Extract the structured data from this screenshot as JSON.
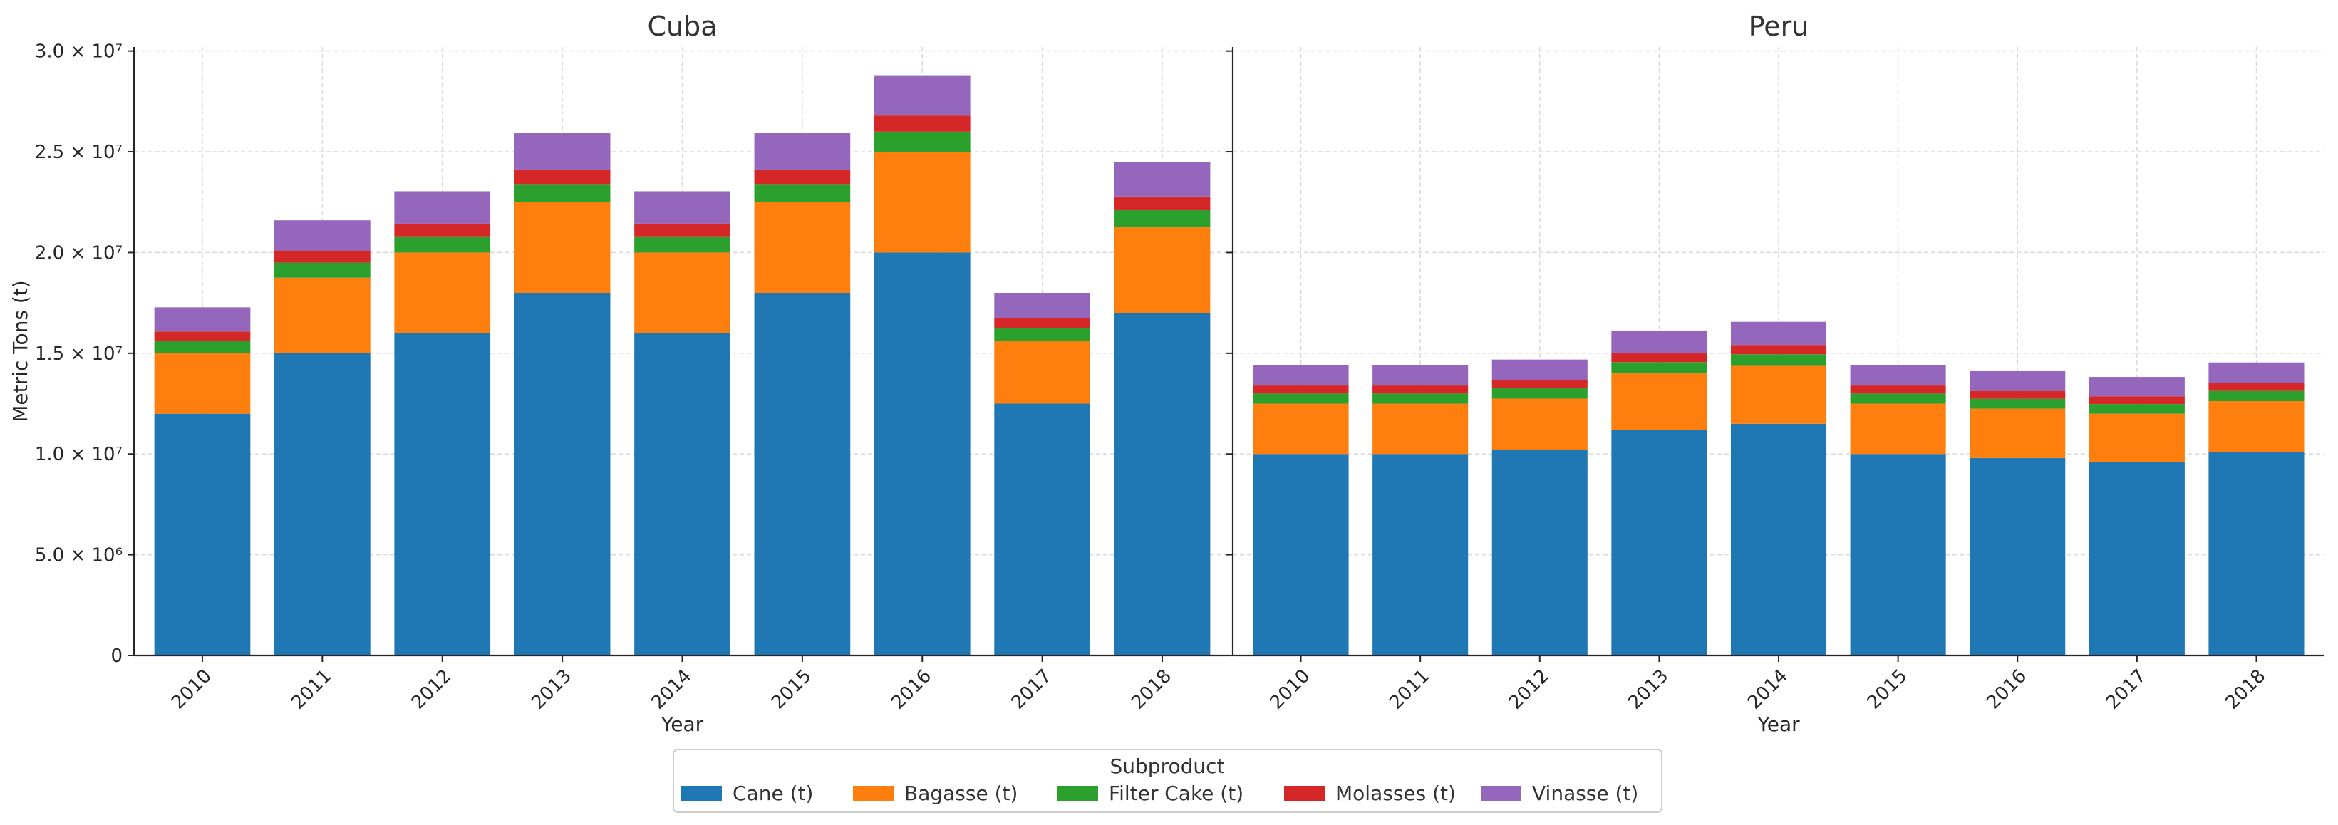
{
  "chart_data": {
    "type": "bar",
    "stacked": true,
    "x_axis_label": "Year",
    "y_axis_label": "Metric Tons (t)",
    "y_ticks": [
      {
        "value": 0,
        "label": "0"
      },
      {
        "value": 5000000,
        "label": "5.0 × 10⁶"
      },
      {
        "value": 10000000,
        "label": "1.0 × 10⁷"
      },
      {
        "value": 15000000,
        "label": "1.5 × 10⁷"
      },
      {
        "value": 20000000,
        "label": "2.0 × 10⁷"
      },
      {
        "value": 25000000,
        "label": "2.5 × 10⁷"
      },
      {
        "value": 30000000,
        "label": "3.0 × 10⁷"
      }
    ],
    "ylim": [
      0,
      30200000
    ],
    "legend": {
      "title": "Subproduct",
      "placement": "bottom-center",
      "entries": [
        "Cane (t)",
        "Bagasse (t)",
        "Filter Cake (t)",
        "Molasses (t)",
        "Vinasse (t)"
      ]
    },
    "series_colors": {
      "Cane (t)": "#1f77b4",
      "Bagasse (t)": "#ff7f0e",
      "Filter Cake (t)": "#2ca02c",
      "Molasses (t)": "#d62728",
      "Vinasse (t)": "#9467bd"
    },
    "panels": [
      {
        "title": "Cuba",
        "categories": [
          "2010",
          "2011",
          "2012",
          "2013",
          "2014",
          "2015",
          "2016",
          "2017",
          "2018"
        ],
        "series": [
          {
            "name": "Cane (t)",
            "values": [
              12000000,
              15000000,
              16000000,
              18000000,
              16000000,
              18000000,
              20000000,
              12500000,
              17000000
            ]
          },
          {
            "name": "Bagasse (t)",
            "values": [
              3000000,
              3750000,
              4000000,
              4500000,
              4000000,
              4500000,
              5000000,
              3125000,
              4250000
            ]
          },
          {
            "name": "Filter Cake (t)",
            "values": [
              600000,
              750000,
              800000,
              900000,
              800000,
              900000,
              1000000,
              625000,
              850000
            ]
          },
          {
            "name": "Molasses (t)",
            "values": [
              480000,
              600000,
              640000,
              720000,
              640000,
              720000,
              800000,
              500000,
              680000
            ]
          },
          {
            "name": "Vinasse (t)",
            "values": [
              1200000,
              1500000,
              1600000,
              1800000,
              1600000,
              1800000,
              2000000,
              1250000,
              1700000
            ]
          }
        ]
      },
      {
        "title": "Peru",
        "categories": [
          "2010",
          "2011",
          "2012",
          "2013",
          "2014",
          "2015",
          "2016",
          "2017",
          "2018"
        ],
        "series": [
          {
            "name": "Cane (t)",
            "values": [
              10000000,
              10000000,
              10200000,
              11200000,
              11500000,
              10000000,
              9800000,
              9600000,
              10100000
            ]
          },
          {
            "name": "Bagasse (t)",
            "values": [
              2500000,
              2500000,
              2550000,
              2800000,
              2875000,
              2500000,
              2450000,
              2400000,
              2525000
            ]
          },
          {
            "name": "Filter Cake (t)",
            "values": [
              500000,
              500000,
              510000,
              560000,
              575000,
              500000,
              490000,
              480000,
              505000
            ]
          },
          {
            "name": "Molasses (t)",
            "values": [
              400000,
              400000,
              408000,
              448000,
              460000,
              400000,
              392000,
              384000,
              404000
            ]
          },
          {
            "name": "Vinasse (t)",
            "values": [
              1000000,
              1000000,
              1020000,
              1120000,
              1150000,
              1000000,
              980000,
              960000,
              1010000
            ]
          }
        ]
      }
    ]
  }
}
